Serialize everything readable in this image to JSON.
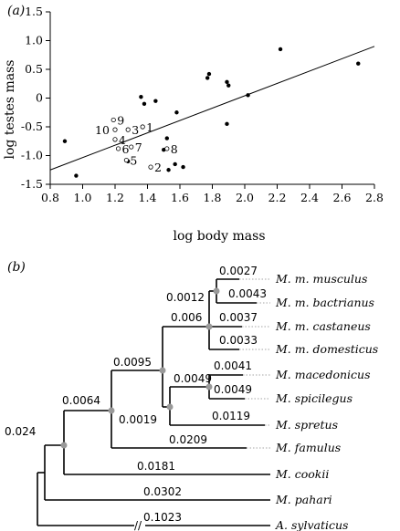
{
  "chart_data": [
    {
      "type": "scatter",
      "panel_label": "(a)",
      "xlabel": "log body mass",
      "ylabel": "log testes mass",
      "xlim": [
        0.8,
        2.8
      ],
      "ylim": [
        -1.5,
        1.5
      ],
      "xticks": [
        "0.8",
        "1.0",
        "1.2",
        "1.4",
        "1.6",
        "1.8",
        "2.0",
        "2.2",
        "2.4",
        "2.6",
        "2.8"
      ],
      "yticks": [
        "1.5",
        "1.0",
        "0.5",
        "0",
        "-0.5",
        "-1.0",
        "-1.5"
      ],
      "regression_line": [
        [
          0.8,
          -1.25
        ],
        [
          2.8,
          0.9
        ]
      ],
      "filled_points": [
        [
          0.89,
          -0.75
        ],
        [
          0.96,
          -1.35
        ],
        [
          1.28,
          -1.1
        ],
        [
          1.36,
          0.02
        ],
        [
          1.38,
          -0.1
        ],
        [
          1.45,
          -0.05
        ],
        [
          1.5,
          -0.9
        ],
        [
          1.52,
          -0.7
        ],
        [
          1.53,
          -1.25
        ],
        [
          1.57,
          -1.15
        ],
        [
          1.58,
          -0.25
        ],
        [
          1.62,
          -1.2
        ],
        [
          1.77,
          0.35
        ],
        [
          1.78,
          0.42
        ],
        [
          1.89,
          0.28
        ],
        [
          1.89,
          -0.45
        ],
        [
          1.9,
          0.22
        ],
        [
          2.02,
          0.05
        ],
        [
          2.22,
          0.85
        ],
        [
          2.7,
          0.6
        ]
      ],
      "open_points": [
        {
          "label": "1",
          "x": 1.37,
          "y": -0.5
        },
        {
          "label": "2",
          "x": 1.42,
          "y": -1.2
        },
        {
          "label": "3",
          "x": 1.28,
          "y": -0.55
        },
        {
          "label": "4",
          "x": 1.2,
          "y": -0.72
        },
        {
          "label": "5",
          "x": 1.27,
          "y": -1.08
        },
        {
          "label": "6",
          "x": 1.22,
          "y": -0.88
        },
        {
          "label": "7",
          "x": 1.3,
          "y": -0.85
        },
        {
          "label": "8",
          "x": 1.52,
          "y": -0.88
        },
        {
          "label": "9",
          "x": 1.19,
          "y": -0.38
        },
        {
          "label": "10",
          "x": 1.2,
          "y": -0.55
        }
      ],
      "grid": false
    },
    {
      "type": "tree",
      "panel_label": "(b)",
      "taxa": [
        "M. m. musculus",
        "M. m. bactrianus",
        "M. m. castaneus",
        "M. m. domesticus",
        "M. macedonicus",
        "M. spicilegus",
        "M. spretus",
        "M. famulus",
        "M. cookii",
        "M. pahari",
        "A. sylvaticus"
      ],
      "branch_lengths": {
        "musculus": "0.0027",
        "bactrianus": "0.0043",
        "mm_mb_node": "0.0012",
        "castaneus": "0.0037",
        "domesticus": "0.0033",
        "mus_musculus_node": "0.006",
        "macedonicus": "0.0041",
        "spicilegus": "0.0049",
        "mac_spic_node": "0.0049",
        "musspic_node": "0.0019",
        "spretus": "0.0119",
        "mus_group_node": "0.0095",
        "famulus": "0.0209",
        "famulus_node": "0.0064",
        "cookii": "0.0181",
        "root_inner": "0.024",
        "pahari": "0.0302",
        "sylvaticus": "0.1023",
        "break_mark": "//"
      }
    }
  ]
}
